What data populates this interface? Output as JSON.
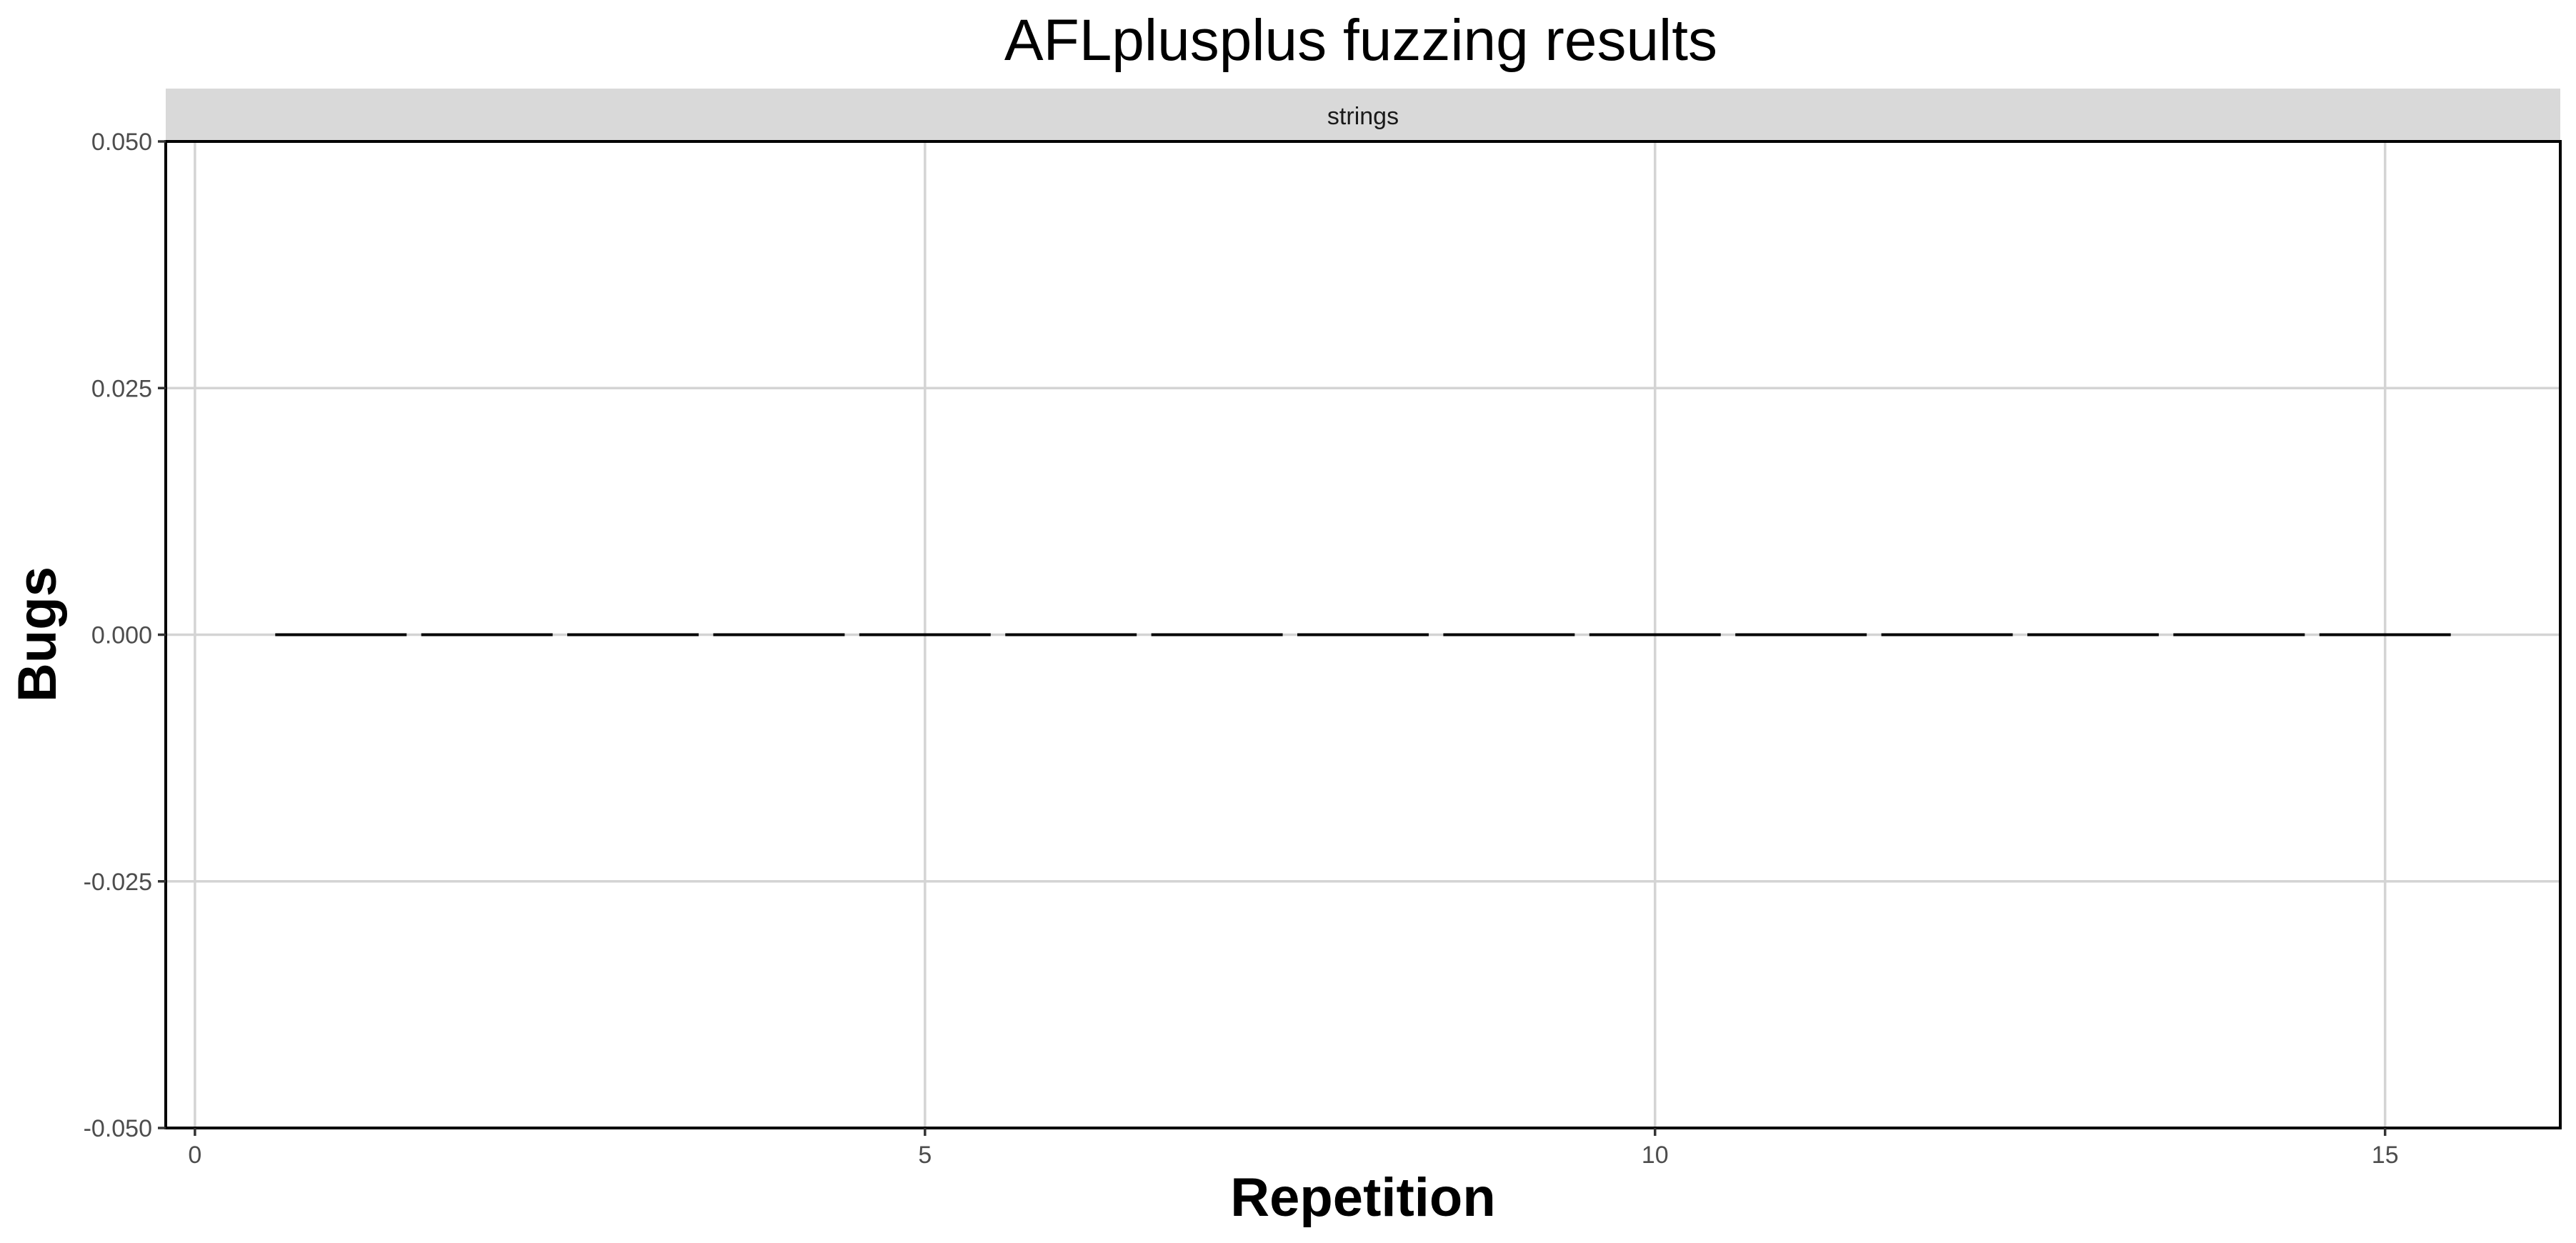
{
  "chart_data": {
    "type": "line",
    "title": "AFLplusplus fuzzing results",
    "facet_label": "strings",
    "xlabel": "Repetition",
    "ylabel": "Bugs",
    "xlim": [
      -0.2,
      16.2
    ],
    "ylim": [
      -0.05,
      0.05
    ],
    "x_ticks": [
      0,
      5,
      10,
      15
    ],
    "x_tick_labels": [
      "0",
      "5",
      "10",
      "15"
    ],
    "y_ticks": [
      -0.05,
      -0.025,
      0,
      0.025,
      0.05
    ],
    "y_tick_labels": [
      "-0.050",
      "-0.025",
      "0.000",
      "0.025",
      "0.050"
    ],
    "grid": true,
    "series": [
      {
        "name": "strings",
        "segment_width": 0.9,
        "x": [
          1,
          2,
          3,
          4,
          5,
          6,
          7,
          8,
          9,
          10,
          11,
          12,
          13,
          14,
          15
        ],
        "values": [
          0,
          0,
          0,
          0,
          0,
          0,
          0,
          0,
          0,
          0,
          0,
          0,
          0,
          0,
          0
        ]
      }
    ]
  }
}
